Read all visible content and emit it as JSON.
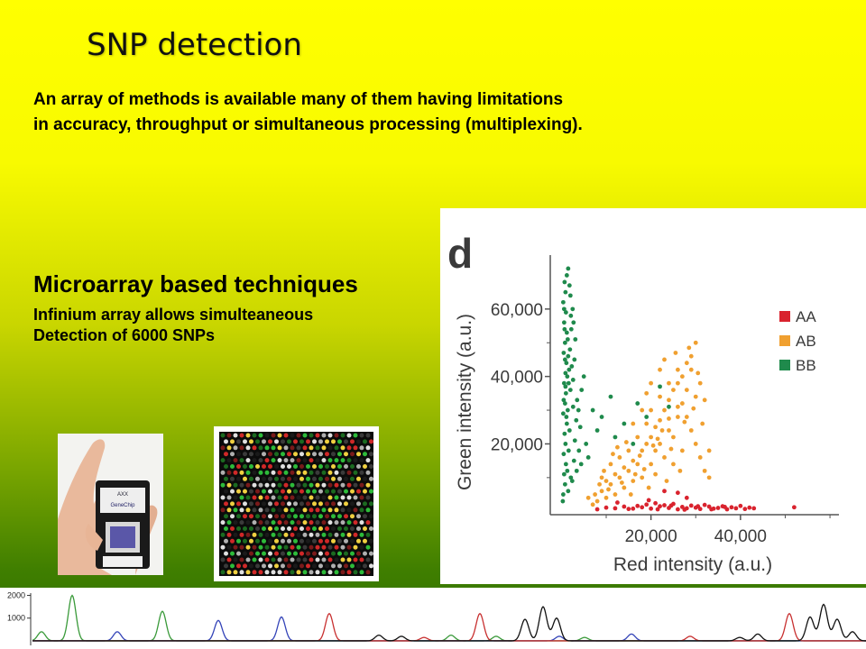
{
  "slide": {
    "title": "SNP detection",
    "intro_line1": "An array of methods is available many of them having limitations",
    "intro_line2": "in accuracy, throughput or simultaneous processing (multiplexing).",
    "section_title": "Microarray based techniques",
    "section_line1": "Infinium array allows simulteaneous",
    "section_line2": "Detection of 6000 SNPs",
    "chip_text": {
      "brand": "AXX",
      "product": "GeneChip"
    }
  },
  "colors": {
    "AA": "#d9232e",
    "AB": "#f0a030",
    "BB": "#1f8a4c"
  },
  "chart_data": [
    {
      "type": "scatter",
      "panel_label": "d",
      "xlabel": "Red intensity (a.u.)",
      "ylabel": "Green intensity (a.u.)",
      "xlim": [
        -2500,
        62000
      ],
      "ylim": [
        -1000,
        76000
      ],
      "x_ticks": [
        20000,
        40000
      ],
      "x_tick_labels": [
        "20,000",
        "40,000"
      ],
      "y_ticks": [
        20000,
        40000,
        60000
      ],
      "y_tick_labels": [
        "20,000",
        "40,000",
        "60,000"
      ],
      "grid": false,
      "legend_position": "top-right",
      "series": [
        {
          "name": "AA",
          "color": "#d9232e",
          "points": [
            [
              8000,
              600
            ],
            [
              12000,
              900
            ],
            [
              15000,
              700
            ],
            [
              18000,
              1200
            ],
            [
              20000,
              800
            ],
            [
              22000,
              1500
            ],
            [
              24000,
              1000
            ],
            [
              26000,
              600
            ],
            [
              27000,
              1300
            ],
            [
              28000,
              900
            ],
            [
              30000,
              1100
            ],
            [
              31000,
              700
            ],
            [
              33000,
              1400
            ],
            [
              34000,
              800
            ],
            [
              35000,
              1000
            ],
            [
              37000,
              600
            ],
            [
              38000,
              1200
            ],
            [
              39000,
              900
            ],
            [
              41000,
              700
            ],
            [
              42000,
              1100
            ],
            [
              19000,
              2000
            ],
            [
              21000,
              2400
            ],
            [
              23000,
              1800
            ],
            [
              25000,
              2200
            ],
            [
              29000,
              1700
            ],
            [
              32000,
              1900
            ],
            [
              36000,
              1500
            ],
            [
              40000,
              1600
            ],
            [
              43000,
              900
            ],
            [
              10000,
              1100
            ],
            [
              14000,
              1400
            ],
            [
              16000,
              800
            ],
            [
              17000,
              1600
            ],
            [
              21500,
              600
            ],
            [
              24500,
              1700
            ],
            [
              27500,
              500
            ],
            [
              30500,
              1500
            ],
            [
              33500,
              600
            ],
            [
              36500,
              1300
            ],
            [
              52000,
              1200
            ],
            [
              26000,
              5500
            ],
            [
              23000,
              6000
            ],
            [
              28000,
              4000
            ],
            [
              19500,
              3300
            ],
            [
              12500,
              2600
            ]
          ]
        },
        {
          "name": "AB",
          "color": "#f0a030",
          "points": [
            [
              9000,
              6000
            ],
            [
              10000,
              9000
            ],
            [
              11000,
              8000
            ],
            [
              12000,
              11000
            ],
            [
              13000,
              10000
            ],
            [
              14000,
              13000
            ],
            [
              15000,
              12000
            ],
            [
              16000,
              15000
            ],
            [
              17000,
              14000
            ],
            [
              18000,
              18000
            ],
            [
              19000,
              20000
            ],
            [
              20000,
              22000
            ],
            [
              21000,
              25000
            ],
            [
              22000,
              27000
            ],
            [
              23000,
              30000
            ],
            [
              24000,
              33000
            ],
            [
              25000,
              36000
            ],
            [
              26000,
              38000
            ],
            [
              27000,
              40000
            ],
            [
              28000,
              44000
            ],
            [
              29000,
              46000
            ],
            [
              30000,
              50000
            ],
            [
              22000,
              20000
            ],
            [
              21000,
              18000
            ],
            [
              24000,
              24000
            ],
            [
              26000,
              28000
            ],
            [
              25000,
              22000
            ],
            [
              23000,
              16000
            ],
            [
              20000,
              14000
            ],
            [
              18000,
              10000
            ],
            [
              16000,
              9000
            ],
            [
              14000,
              7000
            ],
            [
              12000,
              5000
            ],
            [
              10000,
              4000
            ],
            [
              8000,
              3000
            ],
            [
              19000,
              26000
            ],
            [
              20000,
              30000
            ],
            [
              22000,
              34000
            ],
            [
              24000,
              38000
            ],
            [
              26000,
              42000
            ],
            [
              27000,
              32000
            ],
            [
              28000,
              28000
            ],
            [
              29000,
              24000
            ],
            [
              30000,
              20000
            ],
            [
              31000,
              16000
            ],
            [
              32000,
              12000
            ],
            [
              33000,
              10000
            ],
            [
              25000,
              14000
            ],
            [
              27000,
              18000
            ],
            [
              28000,
              36000
            ],
            [
              30000,
              34000
            ],
            [
              31000,
              38000
            ],
            [
              29000,
              42000
            ],
            [
              17000,
              22000
            ],
            [
              15000,
              18000
            ],
            [
              13000,
              16000
            ],
            [
              11000,
              14000
            ],
            [
              18000,
              30000
            ],
            [
              16000,
              26000
            ],
            [
              20000,
              38000
            ],
            [
              22000,
              42000
            ],
            [
              9500,
              12000
            ],
            [
              12500,
              19000
            ],
            [
              21000,
              11000
            ],
            [
              23500,
              9000
            ],
            [
              26500,
              12000
            ],
            [
              19500,
              7000
            ],
            [
              15500,
              5000
            ],
            [
              7000,
              2000
            ],
            [
              6000,
              4000
            ],
            [
              17500,
              16500
            ],
            [
              21500,
              21500
            ],
            [
              24500,
              18500
            ],
            [
              27500,
              26500
            ],
            [
              29500,
              30500
            ],
            [
              23000,
              45000
            ],
            [
              25500,
              47000
            ],
            [
              28500,
              48500
            ],
            [
              19000,
              35000
            ],
            [
              14500,
              20500
            ],
            [
              11500,
              17000
            ],
            [
              31500,
              26000
            ],
            [
              33000,
              18000
            ],
            [
              26000,
              31000
            ],
            [
              24000,
              27500
            ],
            [
              22500,
              24000
            ],
            [
              20500,
              19500
            ],
            [
              18500,
              12500
            ],
            [
              16500,
              11000
            ],
            [
              13500,
              8500
            ],
            [
              10500,
              6500
            ],
            [
              9000,
              10000
            ],
            [
              8500,
              8000
            ],
            [
              7500,
              5000
            ],
            [
              30500,
              41000
            ],
            [
              32000,
              33000
            ]
          ]
        },
        {
          "name": "BB",
          "color": "#1f8a4c",
          "points": [
            [
              400,
              5000
            ],
            [
              800,
              8000
            ],
            [
              600,
              11000
            ],
            [
              1000,
              14000
            ],
            [
              500,
              17000
            ],
            [
              900,
              20000
            ],
            [
              700,
              23000
            ],
            [
              1200,
              26000
            ],
            [
              400,
              29000
            ],
            [
              800,
              32000
            ],
            [
              1000,
              35000
            ],
            [
              600,
              38000
            ],
            [
              900,
              41000
            ],
            [
              1100,
              44000
            ],
            [
              500,
              47000
            ],
            [
              800,
              50000
            ],
            [
              1200,
              53000
            ],
            [
              600,
              56000
            ],
            [
              1000,
              59000
            ],
            [
              400,
              62000
            ],
            [
              900,
              65000
            ],
            [
              700,
              68000
            ],
            [
              1500,
              72000
            ],
            [
              1300,
              12000
            ],
            [
              1600,
              18000
            ],
            [
              1800,
              24000
            ],
            [
              1400,
              30000
            ],
            [
              2000,
              36000
            ],
            [
              1700,
              42000
            ],
            [
              1900,
              48000
            ],
            [
              2200,
              54000
            ],
            [
              2500,
              60000
            ],
            [
              2000,
              64000
            ],
            [
              300,
              3000
            ],
            [
              1500,
              6000
            ],
            [
              2400,
              9000
            ],
            [
              2800,
              15000
            ],
            [
              3000,
              21000
            ],
            [
              3300,
              27000
            ],
            [
              3500,
              33000
            ],
            [
              2600,
              39000
            ],
            [
              2900,
              45000
            ],
            [
              3100,
              51000
            ],
            [
              3800,
              30000
            ],
            [
              4200,
              25000
            ],
            [
              4500,
              36000
            ],
            [
              5000,
              40000
            ],
            [
              5500,
              20000
            ],
            [
              6000,
              16000
            ],
            [
              7000,
              30000
            ],
            [
              8000,
              24000
            ],
            [
              9000,
              28000
            ],
            [
              11000,
              34000
            ],
            [
              12000,
              22000
            ],
            [
              14000,
              26000
            ],
            [
              16000,
              20000
            ],
            [
              17000,
              32000
            ],
            [
              19000,
              28000
            ],
            [
              22000,
              37000
            ],
            [
              24000,
              31000
            ],
            [
              2100,
              10000
            ],
            [
              1100,
              28000
            ],
            [
              1400,
              51000
            ],
            [
              700,
              54000
            ],
            [
              2300,
              43000
            ],
            [
              1800,
              67000
            ],
            [
              1200,
              70000
            ],
            [
              600,
              60000
            ],
            [
              1600,
              38000
            ],
            [
              2700,
              56000
            ],
            [
              800,
              45000
            ],
            [
              1300,
              40000
            ],
            [
              2600,
              31000
            ],
            [
              3400,
              12000
            ],
            [
              3900,
              18000
            ],
            [
              4400,
              14000
            ],
            [
              500,
              33000
            ],
            [
              900,
              37000
            ],
            [
              1500,
              46000
            ],
            [
              2100,
              58000
            ]
          ]
        }
      ]
    },
    {
      "type": "line",
      "description_kind": "chromatogram",
      "y_ticks": [
        1000,
        2000
      ],
      "y_tick_labels": [
        "1000",
        "2000"
      ],
      "ylim": [
        -200,
        2100
      ],
      "xlim": [
        0,
        960
      ],
      "series": [
        {
          "color": "#3a9a3a",
          "peaks": [
            [
              46,
              400
            ],
            [
              80,
              2000
            ],
            [
              180,
              1300
            ],
            [
              500,
              250
            ],
            [
              550,
              200
            ],
            [
              648,
              150
            ]
          ]
        },
        {
          "color": "#3444b8",
          "peaks": [
            [
              130,
              400
            ],
            [
              242,
              900
            ],
            [
              312,
              1050
            ],
            [
              620,
              200
            ],
            [
              700,
              300
            ]
          ]
        },
        {
          "color": "#c83030",
          "peaks": [
            [
              365,
              1200
            ],
            [
              532,
              1200
            ],
            [
              875,
              1200
            ],
            [
              470,
              150
            ],
            [
              765,
              200
            ]
          ]
        },
        {
          "color": "#111111",
          "peaks": [
            [
              582,
              950
            ],
            [
              602,
              1500
            ],
            [
              617,
              1000
            ],
            [
              898,
              1050
            ],
            [
              913,
              1600
            ],
            [
              928,
              950
            ],
            [
              420,
              250
            ],
            [
              445,
              200
            ],
            [
              820,
              150
            ],
            [
              840,
              300
            ],
            [
              945,
              400
            ]
          ]
        }
      ]
    }
  ]
}
